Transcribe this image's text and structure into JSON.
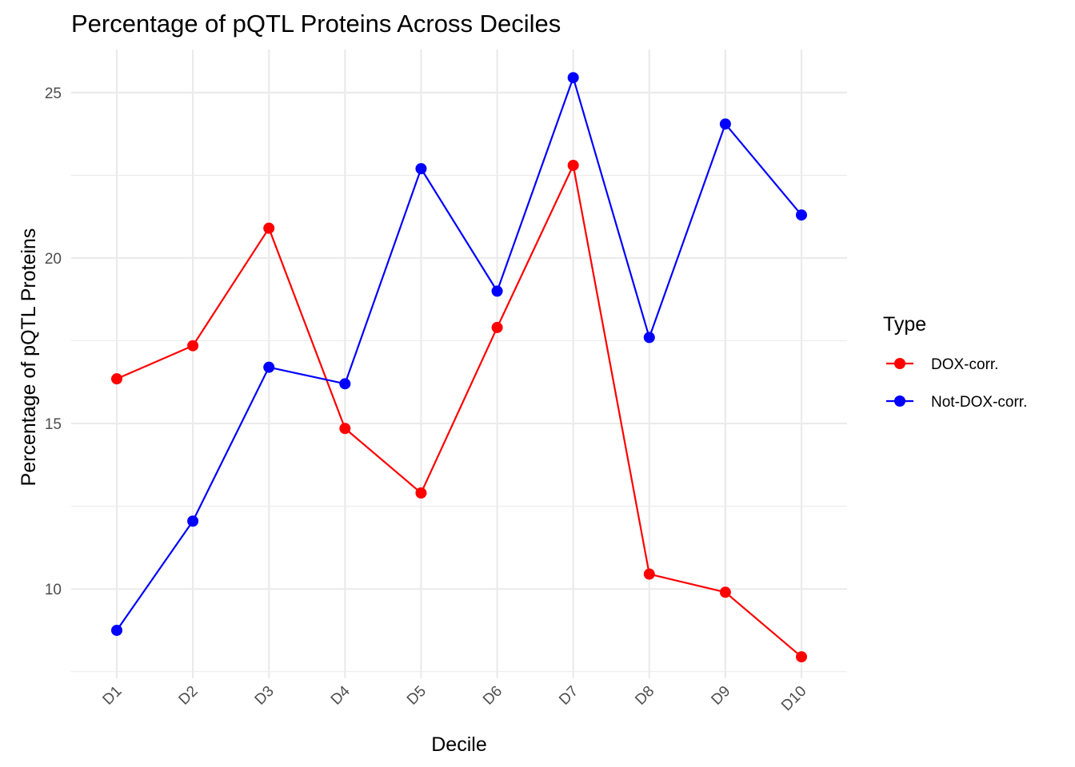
{
  "chart_data": {
    "type": "line",
    "title": "Percentage of pQTL Proteins Across Deciles",
    "xlabel": "Decile",
    "ylabel": "Percentage of pQTL Proteins",
    "categories": [
      "D1",
      "D2",
      "D3",
      "D4",
      "D5",
      "D6",
      "D7",
      "D8",
      "D9",
      "D10"
    ],
    "ylim": [
      7.3,
      26.3
    ],
    "yticks": [
      10,
      15,
      20,
      25
    ],
    "y_minor_ticks": [
      7.5,
      12.5,
      17.5,
      22.5
    ],
    "grid": true,
    "x_tick_rotation": 45,
    "legend": {
      "title": "Type",
      "position": "right"
    },
    "series": [
      {
        "name": "DOX-corr.",
        "color": "#ff0000",
        "values": [
          16.35,
          17.35,
          20.9,
          14.85,
          12.9,
          17.9,
          22.8,
          10.45,
          9.9,
          7.95
        ]
      },
      {
        "name": "Not-DOX-corr.",
        "color": "#0000ff",
        "values": [
          8.75,
          12.05,
          16.7,
          16.2,
          22.7,
          19.0,
          25.45,
          17.6,
          24.05,
          21.3
        ]
      }
    ]
  }
}
